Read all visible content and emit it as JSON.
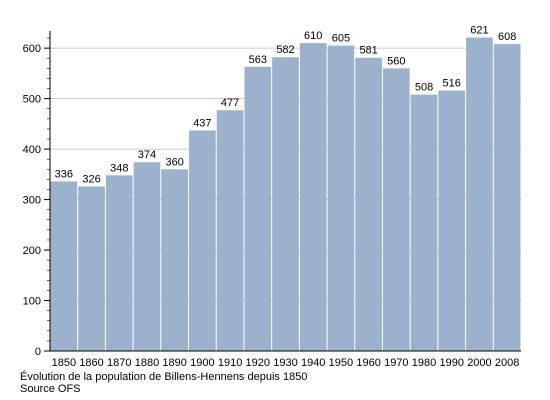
{
  "chart_data": {
    "type": "bar",
    "categories": [
      "1850",
      "1860",
      "1870",
      "1880",
      "1890",
      "1900",
      "1910",
      "1920",
      "1930",
      "1940",
      "1950",
      "1960",
      "1970",
      "1980",
      "1990",
      "2000",
      "2008"
    ],
    "values": [
      336,
      326,
      348,
      374,
      360,
      437,
      477,
      563,
      582,
      610,
      605,
      581,
      560,
      508,
      516,
      621,
      608
    ],
    "ylim": [
      0,
      630
    ],
    "yticks": [
      0,
      100,
      200,
      300,
      400,
      500,
      600
    ],
    "grid": true,
    "bar_color": "#9cb2cc",
    "grid_color": "#bbbbbb"
  },
  "caption": {
    "line1": "Évolution de la population de Billens-Hennens depuis 1850",
    "line2": "Source OFS"
  }
}
